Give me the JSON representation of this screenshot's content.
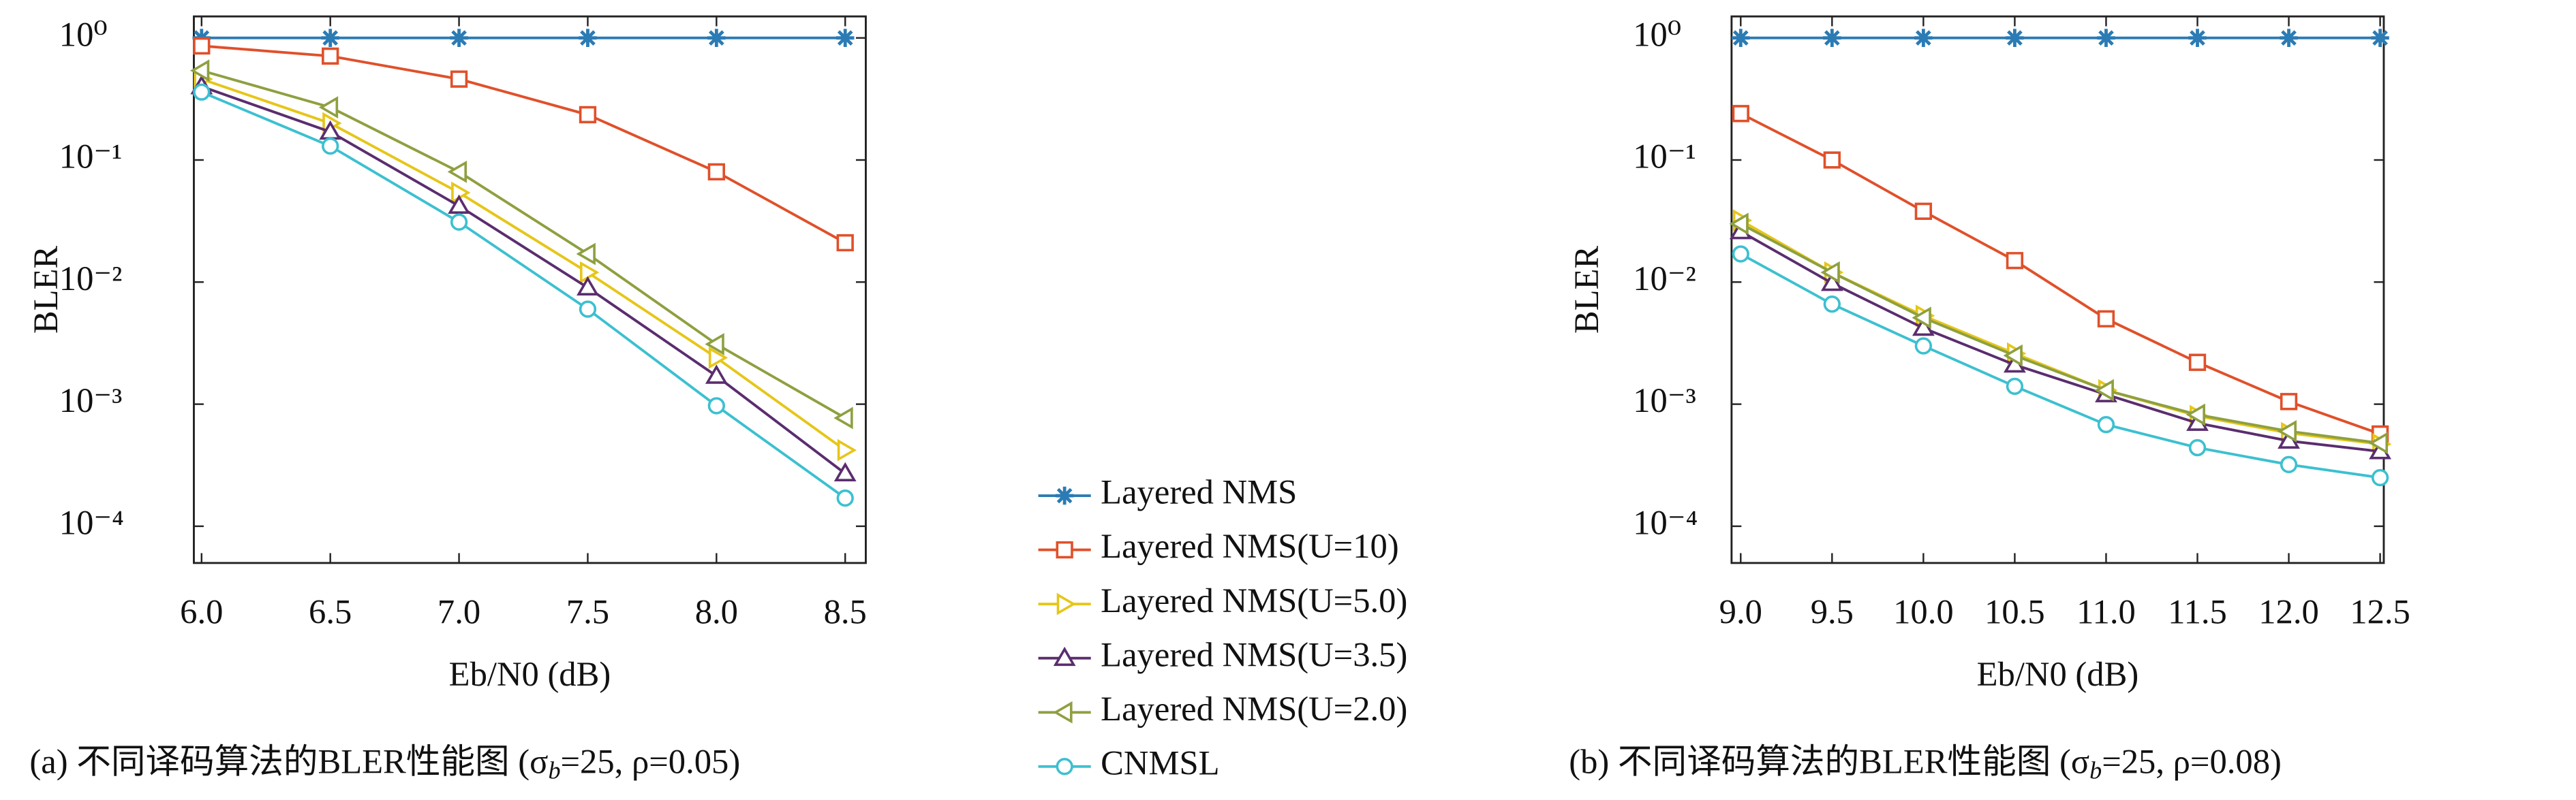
{
  "chart_data": [
    {
      "type": "line",
      "log_y": true,
      "ylabel": "BLER",
      "xlabel": "Eb/N0 (dB)",
      "caption": {
        "text": "(a) 不同译码算法的BLER性能图 (σ",
        "sub": "b",
        "rest": "=25, ρ=0.05)"
      },
      "x": [
        6,
        6.5,
        7,
        7.5,
        8,
        8.5
      ],
      "xlim": [
        5.97,
        8.58
      ],
      "xticks": [
        {
          "value": 6,
          "label": "6.0"
        },
        6.5,
        {
          "value": 7,
          "label": "7.0"
        },
        7.5,
        {
          "value": 8,
          "label": "8.0"
        },
        8.5
      ],
      "ylim": [
        5e-05,
        1.5
      ],
      "yticks": [
        {
          "value": 1,
          "label": "10⁰"
        },
        {
          "value": 0.1,
          "label": "10⁻¹"
        },
        {
          "value": 0.01,
          "label": "10⁻²"
        },
        {
          "value": 0.001,
          "label": "10⁻³"
        },
        {
          "value": 0.0001,
          "label": "10⁻⁴"
        }
      ],
      "series": [
        {
          "name": "Layered NMS",
          "color": "#2b7bb4",
          "marker": "star",
          "values": [
            1,
            1,
            1,
            1,
            1,
            1
          ]
        },
        {
          "name": "Layered NMS(U=10)",
          "color": "#e0502a",
          "marker": "square",
          "values": [
            0.86,
            0.71,
            0.46,
            0.235,
            0.08,
            0.021
          ]
        },
        {
          "name": "Layered NMS(U=5.0)",
          "color": "#e6c619",
          "marker": "right",
          "values": [
            0.46,
            0.2,
            0.054,
            0.012,
            0.0024,
            0.00042
          ]
        },
        {
          "name": "Layered NMS(U=3.5)",
          "color": "#5a2d6e",
          "marker": "up",
          "values": [
            0.4,
            0.17,
            0.042,
            0.009,
            0.0017,
            0.00027
          ]
        },
        {
          "name": "Layered NMS(U=2.0)",
          "color": "#8ea040",
          "marker": "left",
          "values": [
            0.54,
            0.27,
            0.08,
            0.017,
            0.0031,
            0.00077
          ]
        },
        {
          "name": "CNMSL",
          "color": "#3cc0d0",
          "marker": "circle",
          "values": [
            0.36,
            0.13,
            0.031,
            0.006,
            0.00097,
            0.00017
          ]
        }
      ]
    },
    {
      "type": "line",
      "log_y": true,
      "ylabel": "BLER",
      "xlabel": "Eb/N0 (dB)",
      "caption": {
        "text": "(b) 不同译码算法的BLER性能图 (σ",
        "sub": "b",
        "rest": "=25, ρ=0.08)"
      },
      "x": [
        9,
        9.5,
        10,
        10.5,
        11,
        11.5,
        12,
        12.5
      ],
      "xlim": [
        8.95,
        12.52
      ],
      "xticks": [
        {
          "value": 9,
          "label": "9.0"
        },
        9.5,
        {
          "value": 10,
          "label": "10.0"
        },
        10.5,
        {
          "value": 11,
          "label": "11.0"
        },
        11.5,
        {
          "value": 12,
          "label": "12.0"
        },
        12.5
      ],
      "ylim": [
        5e-05,
        1.5
      ],
      "yticks": [
        {
          "value": 1,
          "label": "10⁰"
        },
        {
          "value": 0.1,
          "label": "10⁻¹"
        },
        {
          "value": 0.01,
          "label": "10⁻²"
        },
        {
          "value": 0.001,
          "label": "10⁻³"
        },
        {
          "value": 0.0001,
          "label": "10⁻⁴"
        }
      ],
      "series": [
        {
          "color": "#2b7bb4",
          "marker": "star",
          "values": [
            1,
            1,
            1,
            1,
            1,
            1,
            1,
            1
          ]
        },
        {
          "color": "#e0502a",
          "marker": "square",
          "values": [
            0.24,
            0.1,
            0.038,
            0.015,
            0.005,
            0.0022,
            0.00105,
            0.00057
          ]
        },
        {
          "color": "#e6c619",
          "marker": "right",
          "values": [
            0.032,
            0.012,
            0.0053,
            0.0026,
            0.0013,
            0.0008,
            0.00058,
            0.00047
          ]
        },
        {
          "color": "#5a2d6e",
          "marker": "up",
          "values": [
            0.026,
            0.0098,
            0.0042,
            0.0021,
            0.0012,
            0.0007,
            0.0005,
            0.00041
          ]
        },
        {
          "color": "#8ea040",
          "marker": "left",
          "values": [
            0.03,
            0.012,
            0.0051,
            0.0025,
            0.0013,
            0.00082,
            0.0006,
            0.00048
          ]
        },
        {
          "color": "#3cc0d0",
          "marker": "circle",
          "values": [
            0.017,
            0.0066,
            0.003,
            0.0014,
            0.00068,
            0.00044,
            0.00032,
            0.00025
          ]
        }
      ]
    }
  ]
}
